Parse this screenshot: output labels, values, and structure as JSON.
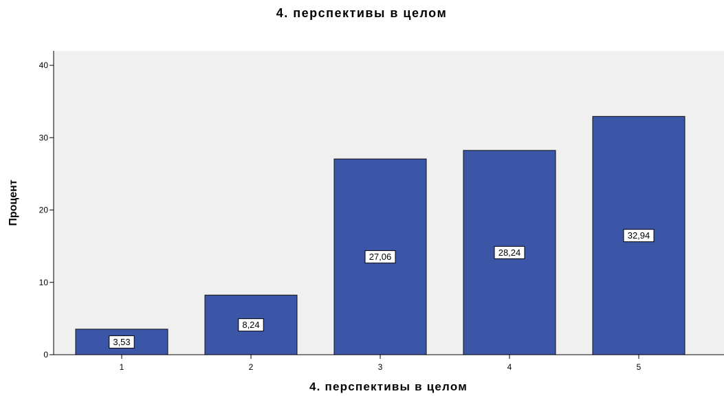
{
  "chart_data": {
    "type": "bar",
    "title": "4. перспективы в целом",
    "xlabel": "4. перспективы в целом",
    "ylabel": "Процент",
    "categories": [
      "1",
      "2",
      "3",
      "4",
      "5"
    ],
    "values": [
      3.53,
      8.24,
      27.06,
      28.24,
      32.94
    ],
    "data_labels": [
      "3,53",
      "8,24",
      "27,06",
      "28,24",
      "32,94"
    ],
    "ylim": [
      0,
      42
    ],
    "yticks": [
      0,
      10,
      20,
      30,
      40
    ],
    "ytick_labels": [
      "0",
      "10",
      "20",
      "30",
      "40"
    ],
    "grid": false,
    "legend": "none",
    "colors": {
      "bar_fill": "#3C56A7",
      "bar_stroke": "#111111",
      "plot_background": "#F0F0F0",
      "axis": "#000000",
      "label_box_fill": "#FFFFFF"
    }
  }
}
